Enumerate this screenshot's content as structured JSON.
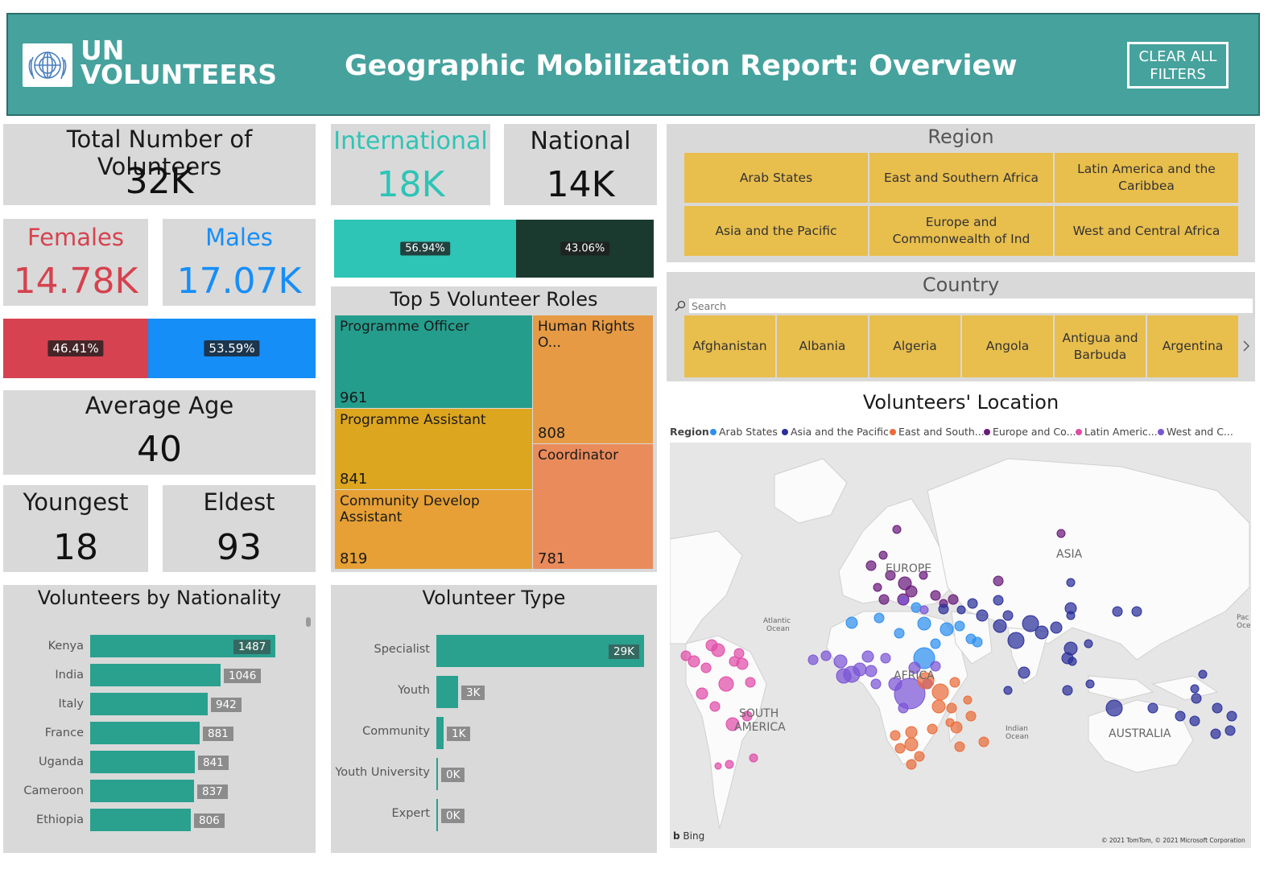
{
  "header": {
    "logo_line1": "UN",
    "logo_line2": "VOLUNTEERS",
    "title": "Geographic Mobilization Report: Overview",
    "clear_line1": "CLEAR ALL",
    "clear_line2": "FILTERS"
  },
  "kpis": {
    "total_label": "Total Number of Volunteers",
    "total_value": "32K",
    "females_label": "Females",
    "females_value": "14.78K",
    "males_label": "Males",
    "males_value": "17.07K",
    "female_pct": "46.41%",
    "male_pct": "53.59%",
    "female_share": 0.4641,
    "avg_age_label": "Average Age",
    "avg_age_value": "40",
    "youngest_label": "Youngest",
    "youngest_value": "18",
    "eldest_label": "Eldest",
    "eldest_value": "93",
    "international_label": "International",
    "international_value": "18K",
    "national_label": "National",
    "national_value": "14K",
    "international_pct": "56.94%",
    "national_pct": "43.06%",
    "international_share": 0.5694
  },
  "colors": {
    "header_teal": "#46a29d",
    "female_red": "#d6424f",
    "male_blue": "#168ef8",
    "international_teal": "#2ec4b6",
    "national_dark": "#1b3a2f",
    "bar_teal": "#2aa08f",
    "region_yellow": "#e8be4c"
  },
  "roles": {
    "title": "Top 5 Volunteer Roles",
    "items": [
      {
        "name": "Programme Officer",
        "value": "961",
        "color": "#259d8c"
      },
      {
        "name": "Human Rights O...",
        "value": "808",
        "color": "#e69a44"
      },
      {
        "name": "Programme Assistant",
        "value": "841",
        "color": "#dda61f"
      },
      {
        "name": "Coordinator",
        "value": "781",
        "color": "#ea8b5c"
      },
      {
        "name": "Community Develop Assistant",
        "value": "819",
        "color": "#e6a035"
      }
    ]
  },
  "nationality": {
    "title": "Volunteers by Nationality",
    "items": [
      {
        "label": "Kenya",
        "value": "1487"
      },
      {
        "label": "India",
        "value": "1046"
      },
      {
        "label": "Italy",
        "value": "942"
      },
      {
        "label": "France",
        "value": "881"
      },
      {
        "label": "Uganda",
        "value": "841"
      },
      {
        "label": "Cameroon",
        "value": "837"
      },
      {
        "label": "Ethiopia",
        "value": "806"
      }
    ]
  },
  "volunteer_type": {
    "title": "Volunteer Type",
    "items": [
      {
        "label": "Specialist",
        "value": "29K"
      },
      {
        "label": "Youth",
        "value": "3K"
      },
      {
        "label": "Community",
        "value": "1K"
      },
      {
        "label": "Youth University",
        "value": "0K"
      },
      {
        "label": "Expert",
        "value": "0K"
      }
    ]
  },
  "region_slicer": {
    "title": "Region",
    "items": [
      "Arab States",
      "East and Southern Africa",
      "Latin America and the Caribbea",
      "Asia and the Pacific",
      "Europe and Commonwealth of Ind",
      "West and Central Africa"
    ]
  },
  "country_slicer": {
    "title": "Country",
    "search_placeholder": "Search",
    "items": [
      "Afghanistan",
      "Albania",
      "Algeria",
      "Angola",
      "Antigua and Barbuda",
      "Argentina"
    ],
    "next_icon": "chevron-right-icon"
  },
  "map": {
    "title": "Volunteers' Location",
    "legend_title": "Region",
    "legend": [
      {
        "name": "Arab States",
        "color": "#2d8ff0"
      },
      {
        "name": "Asia and the Pacific",
        "color": "#2a2f9a"
      },
      {
        "name": "East and South...",
        "color": "#ea6c3a"
      },
      {
        "name": "Europe and Co...",
        "color": "#6a1b7a"
      },
      {
        "name": "Latin Americ...",
        "color": "#e04ca8"
      },
      {
        "name": "West and C...",
        "color": "#7b55d6"
      }
    ],
    "labels": {
      "europe": "EUROPE",
      "asia": "ASIA",
      "africa": "AFRICA",
      "south_america_1": "SOUTH",
      "south_america_2": "AMERICA",
      "australia": "AUSTRALIA",
      "atlantic_1": "Atlantic",
      "atlantic_2": "Ocean",
      "indian_1": "Indian",
      "indian_2": "Ocean",
      "pacific_1": "Pac",
      "pacific_2": "Oce"
    },
    "bing": "Bing",
    "copyright": "© 2021 TomTom, © 2021 Microsoft Corporation"
  },
  "chart_data": [
    {
      "type": "bar",
      "title": "Volunteers by Nationality",
      "categories": [
        "Kenya",
        "India",
        "Italy",
        "France",
        "Uganda",
        "Cameroon",
        "Ethiopia"
      ],
      "values": [
        1487,
        1046,
        942,
        881,
        841,
        837,
        806
      ]
    },
    {
      "type": "bar",
      "title": "Volunteer Type",
      "categories": [
        "Specialist",
        "Youth",
        "Community",
        "Youth University",
        "Expert"
      ],
      "values": [
        29000,
        3000,
        1000,
        0,
        0
      ]
    }
  ]
}
